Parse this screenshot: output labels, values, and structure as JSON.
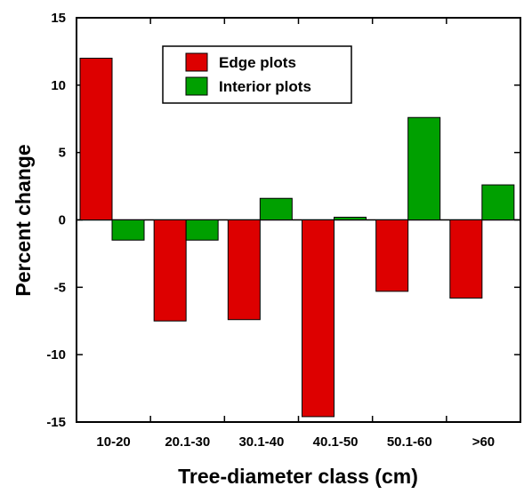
{
  "chart_data": {
    "type": "bar",
    "title": "",
    "xlabel": "Tree-diameter class (cm)",
    "ylabel": "Percent change",
    "categories": [
      "10-20",
      "20.1-30",
      "30.1-40",
      "40.1-50",
      "50.1-60",
      ">60"
    ],
    "series": [
      {
        "name": "Edge plots",
        "color": "#dd0000",
        "values": [
          12.0,
          -7.5,
          -7.4,
          -14.6,
          -5.3,
          -5.8
        ]
      },
      {
        "name": "Interior plots",
        "color": "#00a000",
        "values": [
          -1.5,
          -1.5,
          1.6,
          0.2,
          7.6,
          2.6
        ]
      }
    ],
    "ylim": [
      -15,
      15
    ],
    "yticks": [
      -15,
      -10,
      -5,
      0,
      5,
      10,
      15
    ],
    "yticklabels": [
      "-15",
      "-10",
      "-5",
      "0",
      "5",
      "10",
      "15"
    ],
    "grid": false,
    "legend_position": "top-center"
  }
}
